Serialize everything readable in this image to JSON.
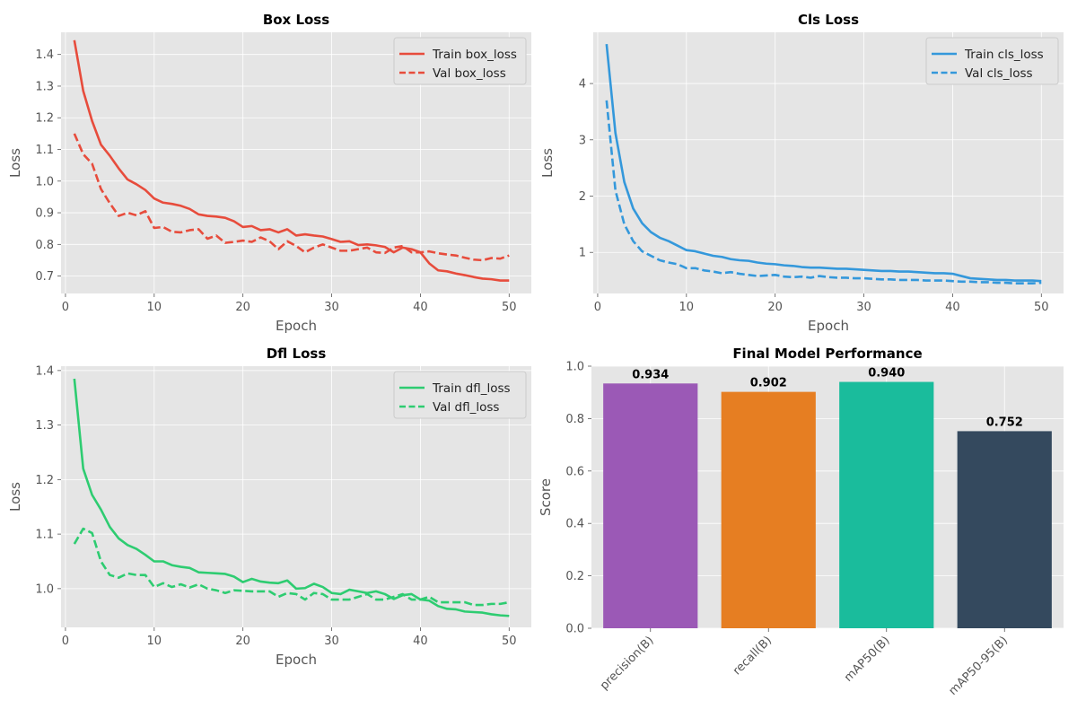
{
  "chart_data": [
    {
      "type": "line",
      "title": "Box Loss",
      "xlabel": "Epoch",
      "ylabel": "Loss",
      "xlim": [
        -0.5,
        52.5
      ],
      "ylim": [
        0.645,
        1.47
      ],
      "xticks": [
        0,
        10,
        20,
        30,
        40,
        50
      ],
      "yticks": [
        0.7,
        0.8,
        0.9,
        1.0,
        1.1,
        1.2,
        1.3,
        1.4
      ],
      "ytick_labels": [
        "0.7",
        "0.8",
        "0.9",
        "1.0",
        "1.1",
        "1.2",
        "1.3",
        "1.4"
      ],
      "grid": true,
      "legend_position": "top-right",
      "x": [
        1,
        2,
        3,
        4,
        5,
        6,
        7,
        8,
        9,
        10,
        11,
        12,
        13,
        14,
        15,
        16,
        17,
        18,
        19,
        20,
        21,
        22,
        23,
        24,
        25,
        26,
        27,
        28,
        29,
        30,
        31,
        32,
        33,
        34,
        35,
        36,
        37,
        38,
        39,
        40,
        41,
        42,
        43,
        44,
        45,
        46,
        47,
        48,
        49,
        50
      ],
      "series": [
        {
          "name": "Train box_loss",
          "color": "#e74c3c",
          "dash": "solid",
          "values": [
            1.445,
            1.285,
            1.19,
            1.115,
            1.08,
            1.04,
            1.005,
            0.99,
            0.972,
            0.945,
            0.932,
            0.928,
            0.922,
            0.912,
            0.895,
            0.89,
            0.888,
            0.884,
            0.873,
            0.855,
            0.858,
            0.845,
            0.848,
            0.838,
            0.848,
            0.828,
            0.832,
            0.828,
            0.825,
            0.817,
            0.808,
            0.81,
            0.798,
            0.8,
            0.797,
            0.792,
            0.775,
            0.79,
            0.785,
            0.775,
            0.74,
            0.718,
            0.715,
            0.708,
            0.703,
            0.697,
            0.692,
            0.69,
            0.686,
            0.686
          ]
        },
        {
          "name": "Val box_loss",
          "color": "#e74c3c",
          "dash": "dashed",
          "values": [
            1.15,
            1.085,
            1.055,
            0.975,
            0.93,
            0.89,
            0.9,
            0.892,
            0.905,
            0.852,
            0.855,
            0.84,
            0.838,
            0.845,
            0.848,
            0.818,
            0.828,
            0.805,
            0.808,
            0.812,
            0.808,
            0.822,
            0.81,
            0.785,
            0.81,
            0.795,
            0.775,
            0.79,
            0.8,
            0.79,
            0.78,
            0.78,
            0.785,
            0.79,
            0.775,
            0.773,
            0.79,
            0.795,
            0.775,
            0.775,
            0.778,
            0.772,
            0.768,
            0.765,
            0.758,
            0.752,
            0.75,
            0.757,
            0.755,
            0.765
          ]
        }
      ]
    },
    {
      "type": "line",
      "title": "Cls Loss",
      "xlabel": "Epoch",
      "ylabel": "Loss",
      "xlim": [
        -0.5,
        52.5
      ],
      "ylim": [
        0.27,
        4.91
      ],
      "xticks": [
        0,
        10,
        20,
        30,
        40,
        50
      ],
      "yticks": [
        1,
        2,
        3,
        4
      ],
      "ytick_labels": [
        "1",
        "2",
        "3",
        "4"
      ],
      "grid": true,
      "legend_position": "top-right",
      "x": [
        1,
        2,
        3,
        4,
        5,
        6,
        7,
        8,
        9,
        10,
        11,
        12,
        13,
        14,
        15,
        16,
        17,
        18,
        19,
        20,
        21,
        22,
        23,
        24,
        25,
        26,
        27,
        28,
        29,
        30,
        31,
        32,
        33,
        34,
        35,
        36,
        37,
        38,
        39,
        40,
        41,
        42,
        43,
        44,
        45,
        46,
        47,
        48,
        49,
        50
      ],
      "series": [
        {
          "name": "Train cls_loss",
          "color": "#3498db",
          "dash": "solid",
          "values": [
            4.7,
            3.12,
            2.25,
            1.78,
            1.52,
            1.36,
            1.26,
            1.2,
            1.12,
            1.04,
            1.02,
            0.98,
            0.94,
            0.92,
            0.88,
            0.86,
            0.85,
            0.82,
            0.8,
            0.79,
            0.77,
            0.76,
            0.74,
            0.73,
            0.73,
            0.72,
            0.71,
            0.71,
            0.7,
            0.69,
            0.68,
            0.67,
            0.67,
            0.66,
            0.66,
            0.65,
            0.64,
            0.63,
            0.63,
            0.62,
            0.58,
            0.54,
            0.53,
            0.52,
            0.51,
            0.51,
            0.5,
            0.5,
            0.5,
            0.49
          ]
        },
        {
          "name": "Val cls_loss",
          "color": "#3498db",
          "dash": "dashed",
          "values": [
            3.7,
            2.1,
            1.5,
            1.2,
            1.02,
            0.94,
            0.86,
            0.82,
            0.79,
            0.72,
            0.72,
            0.68,
            0.66,
            0.63,
            0.65,
            0.62,
            0.6,
            0.58,
            0.59,
            0.6,
            0.57,
            0.56,
            0.57,
            0.55,
            0.58,
            0.56,
            0.55,
            0.55,
            0.54,
            0.54,
            0.53,
            0.52,
            0.52,
            0.51,
            0.51,
            0.51,
            0.5,
            0.5,
            0.5,
            0.49,
            0.48,
            0.48,
            0.47,
            0.47,
            0.46,
            0.46,
            0.45,
            0.45,
            0.45,
            0.46
          ]
        }
      ]
    },
    {
      "type": "line",
      "title": "Dfl Loss",
      "xlabel": "Epoch",
      "ylabel": "Loss",
      "xlim": [
        -0.5,
        52.5
      ],
      "ylim": [
        0.929,
        1.408
      ],
      "xticks": [
        0,
        10,
        20,
        30,
        40,
        50
      ],
      "yticks": [
        1.0,
        1.1,
        1.2,
        1.3,
        1.4
      ],
      "ytick_labels": [
        "1.0",
        "1.1",
        "1.2",
        "1.3",
        "1.4"
      ],
      "grid": true,
      "legend_position": "top-right",
      "x": [
        1,
        2,
        3,
        4,
        5,
        6,
        7,
        8,
        9,
        10,
        11,
        12,
        13,
        14,
        15,
        16,
        17,
        18,
        19,
        20,
        21,
        22,
        23,
        24,
        25,
        26,
        27,
        28,
        29,
        30,
        31,
        32,
        33,
        34,
        35,
        36,
        37,
        38,
        39,
        40,
        41,
        42,
        43,
        44,
        45,
        46,
        47,
        48,
        49,
        50
      ],
      "series": [
        {
          "name": "Train dfl_loss",
          "color": "#2ecc71",
          "dash": "solid",
          "values": [
            1.385,
            1.22,
            1.172,
            1.145,
            1.113,
            1.092,
            1.08,
            1.073,
            1.062,
            1.05,
            1.05,
            1.043,
            1.04,
            1.038,
            1.03,
            1.029,
            1.028,
            1.027,
            1.022,
            1.012,
            1.018,
            1.013,
            1.011,
            1.01,
            1.015,
            1.0,
            1.001,
            1.009,
            1.003,
            0.992,
            0.99,
            0.998,
            0.995,
            0.992,
            0.995,
            0.99,
            0.981,
            0.988,
            0.99,
            0.98,
            0.978,
            0.968,
            0.963,
            0.962,
            0.958,
            0.957,
            0.956,
            0.953,
            0.951,
            0.95
          ]
        },
        {
          "name": "Val dfl_loss",
          "color": "#2ecc71",
          "dash": "dashed",
          "values": [
            1.082,
            1.11,
            1.102,
            1.05,
            1.025,
            1.02,
            1.028,
            1.025,
            1.025,
            1.003,
            1.01,
            1.003,
            1.008,
            1.002,
            1.008,
            1.0,
            0.997,
            0.992,
            0.997,
            0.996,
            0.995,
            0.995,
            0.995,
            0.985,
            0.992,
            0.99,
            0.98,
            0.992,
            0.99,
            0.98,
            0.98,
            0.98,
            0.985,
            0.99,
            0.98,
            0.98,
            0.985,
            0.99,
            0.98,
            0.98,
            0.985,
            0.975,
            0.975,
            0.975,
            0.975,
            0.97,
            0.97,
            0.972,
            0.972,
            0.975
          ]
        }
      ]
    },
    {
      "type": "bar",
      "title": "Final Model Performance",
      "xlabel": "",
      "ylabel": "Score",
      "ylim": [
        0,
        1.0
      ],
      "yticks": [
        0.0,
        0.2,
        0.4,
        0.6,
        0.8,
        1.0
      ],
      "ytick_labels": [
        "0.0",
        "0.2",
        "0.4",
        "0.6",
        "0.8",
        "1.0"
      ],
      "grid": true,
      "categories": [
        "precision(B)",
        "recall(B)",
        "mAP50(B)",
        "mAP50-95(B)"
      ],
      "values": [
        0.934,
        0.902,
        0.94,
        0.752
      ],
      "value_labels": [
        "0.934",
        "0.902",
        "0.940",
        "0.752"
      ],
      "colors": [
        "#9b59b6",
        "#e67e22",
        "#1abc9c",
        "#34495e"
      ]
    }
  ]
}
